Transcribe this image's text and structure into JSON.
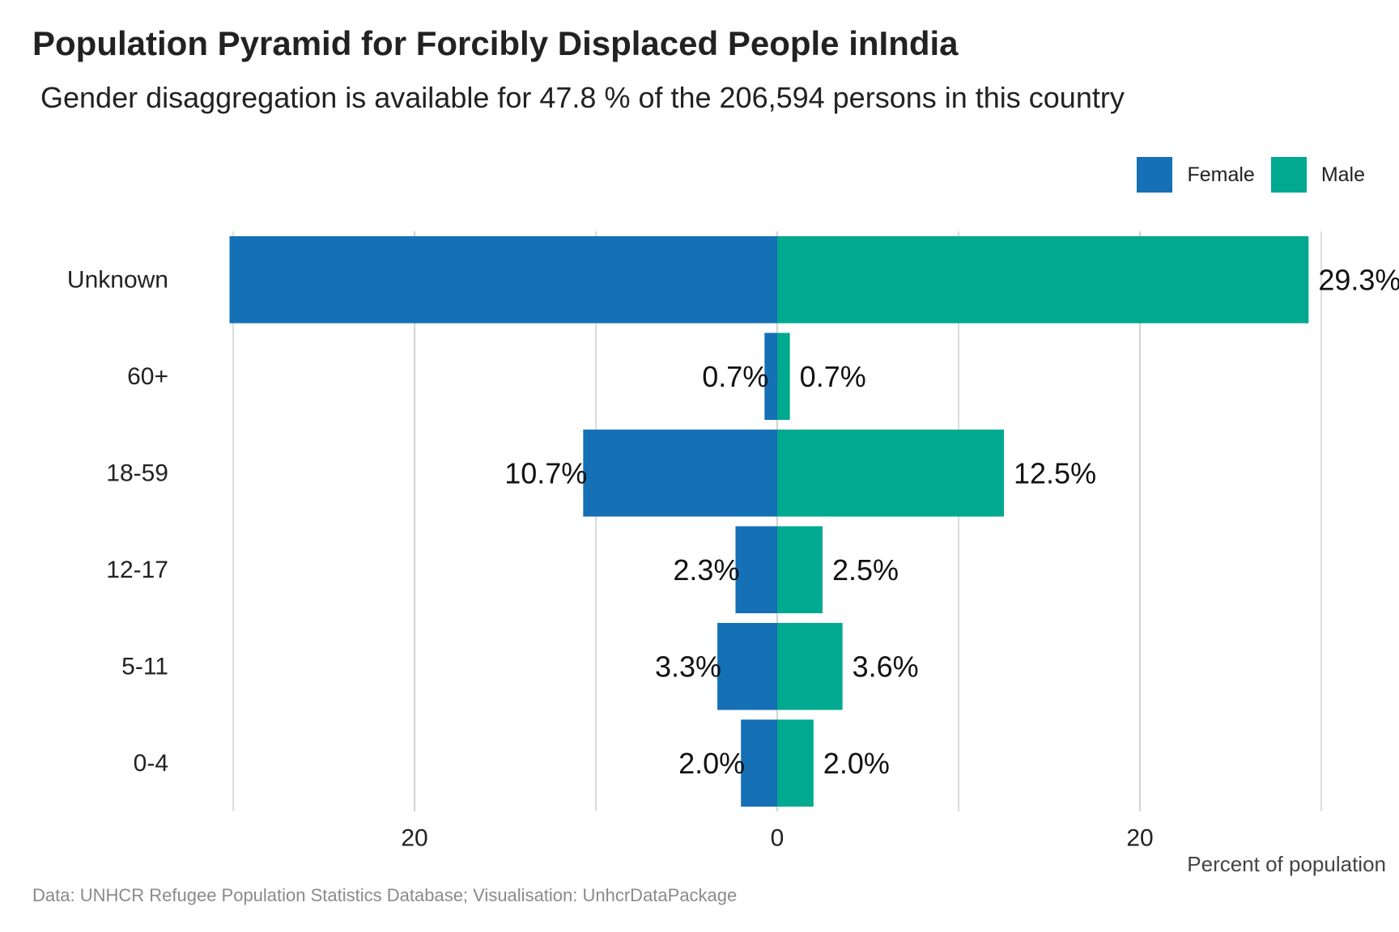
{
  "title": "Population Pyramid for Forcibly Displaced People inIndia",
  "subtitle": "Gender disaggregation is available for 47.8 % of the 206,594 persons in this country",
  "caption": "Data: UNHCR Refugee Population Statistics Database; Visualisation: UnhcrDataPackage",
  "legend": {
    "female_label": "Female",
    "male_label": "Male",
    "position": "top-right"
  },
  "colors": {
    "female": "#1570b6",
    "male": "#00a98f",
    "grid": "#d4d4d4",
    "text": "#222222",
    "caption": "#8a8a8a"
  },
  "chart_data": {
    "type": "bar",
    "orientation": "horizontal",
    "categories": [
      "Unknown",
      "60+",
      "18-59",
      "12-17",
      "5-11",
      "0-4"
    ],
    "series": [
      {
        "name": "Female",
        "values": [
          30.2,
          0.7,
          10.7,
          2.3,
          3.3,
          2.0
        ],
        "labels": [
          "",
          "0.7%",
          "10.7%",
          "2.3%",
          "3.3%",
          "2.0%"
        ]
      },
      {
        "name": "Male",
        "values": [
          29.3,
          0.7,
          12.5,
          2.5,
          3.6,
          2.0
        ],
        "labels": [
          "29.3%",
          "0.7%",
          "12.5%",
          "2.5%",
          "3.6%",
          "2.0%"
        ]
      }
    ],
    "xlabel": "Percent of population",
    "xticks": [
      -20,
      0,
      20
    ],
    "xtick_labels": [
      "20",
      "0",
      "20"
    ],
    "xlim": [
      -30.2,
      30.2
    ],
    "grid": true
  }
}
